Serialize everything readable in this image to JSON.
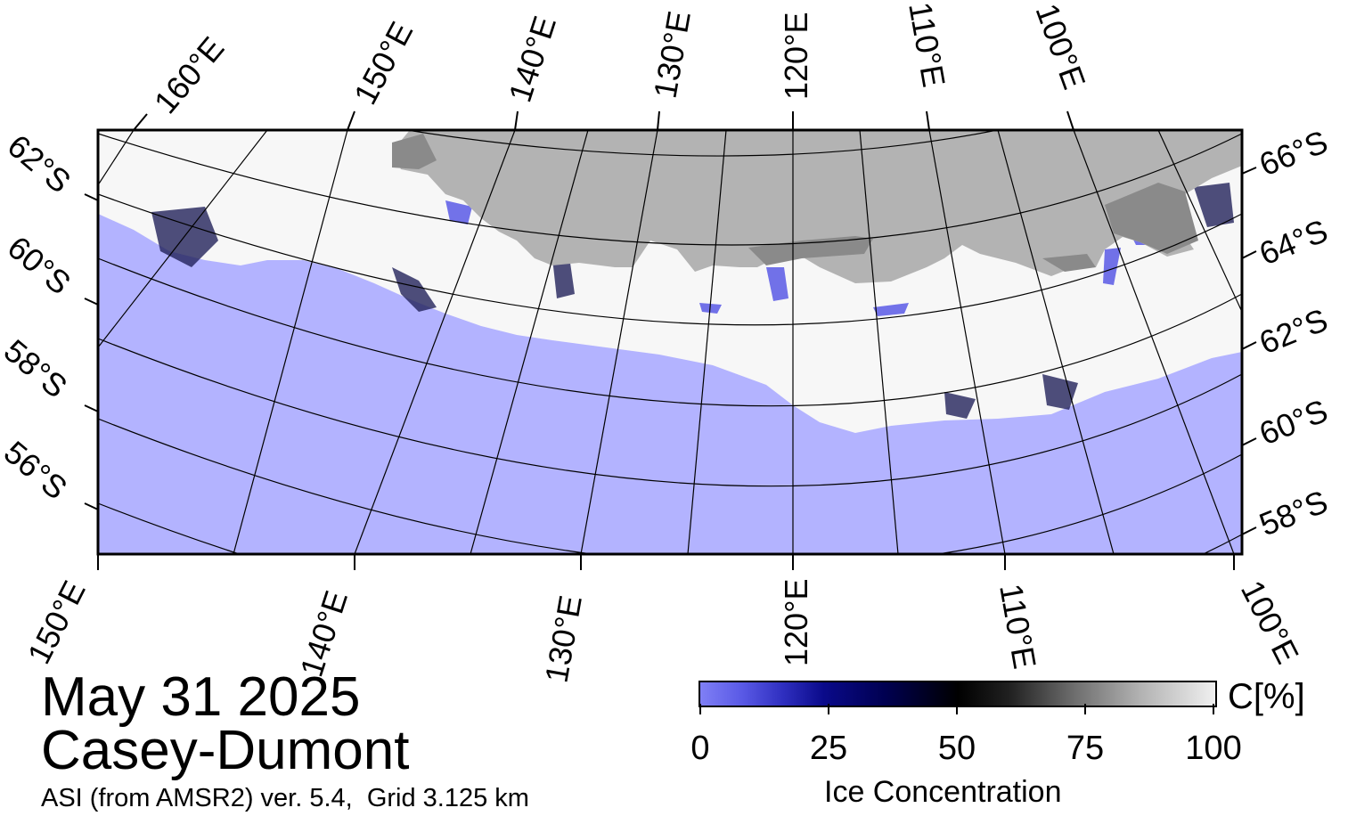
{
  "map": {
    "date": "May 31 2025",
    "region": "Casey-Dumont",
    "source": "ASI (from AMSR2) ver. 5.4,  Grid 3.125 km",
    "colors": {
      "ocean": "#b3b3ff",
      "land": "#b3b3b3",
      "land_shelf": "#8a8a8a",
      "ice": "#ffffff",
      "frame": "#000000"
    },
    "top_longitude_labels": [
      "160°E",
      "150°E",
      "140°E",
      "130°E",
      "120°E",
      "110°E",
      "100°E"
    ],
    "bottom_longitude_labels": [
      "150°E",
      "140°E",
      "130°E",
      "120°E",
      "110°E",
      "100°E"
    ],
    "left_latitude_labels": [
      "62°S",
      "60°S",
      "58°S",
      "56°S"
    ],
    "right_latitude_labels": [
      "66°S",
      "64°S",
      "62°S",
      "60°S",
      "58°S"
    ]
  },
  "colorbar": {
    "title": "Ice Concentration",
    "unit": "C[%]",
    "ticks": [
      "0",
      "25",
      "50",
      "75",
      "100"
    ],
    "range": [
      0,
      100
    ]
  }
}
